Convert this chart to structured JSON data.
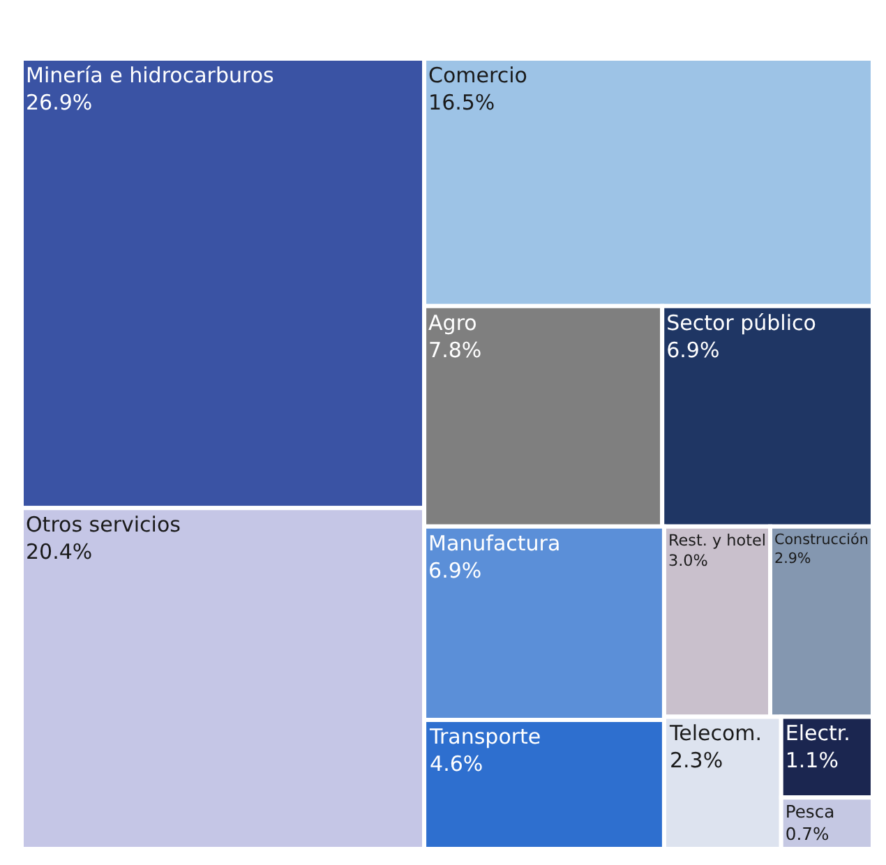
{
  "chart_data": {
    "type": "other",
    "categories": [
      "Minería e hidrocarburos",
      "Otros servicios",
      "Comercio",
      "Agro",
      "Sector público",
      "Manufactura",
      "Transporte",
      "Rest. y hotel",
      "Construcción",
      "Telecom.",
      "Electr.",
      "Pesca"
    ],
    "values": [
      26.9,
      20.4,
      16.5,
      7.8,
      6.9,
      6.9,
      4.6,
      3.0,
      2.9,
      2.3,
      1.1,
      0.7
    ],
    "value_labels": [
      "26.9%",
      "20.4%",
      "16.5%",
      "7.8%",
      "6.9%",
      "6.9%",
      "4.6%",
      "3.0%",
      "2.9%",
      "2.3%",
      "1.1%",
      "0.7%"
    ],
    "colors": [
      "#3a53a4",
      "#c5c6e6",
      "#9dc3e6",
      "#7f7f7f",
      "#1f3664",
      "#5b8fd8",
      "#2e6fcf",
      "#c9c0cc",
      "#8497b0",
      "#dde3ef",
      "#1b2650",
      "#c5c8e3"
    ]
  }
}
